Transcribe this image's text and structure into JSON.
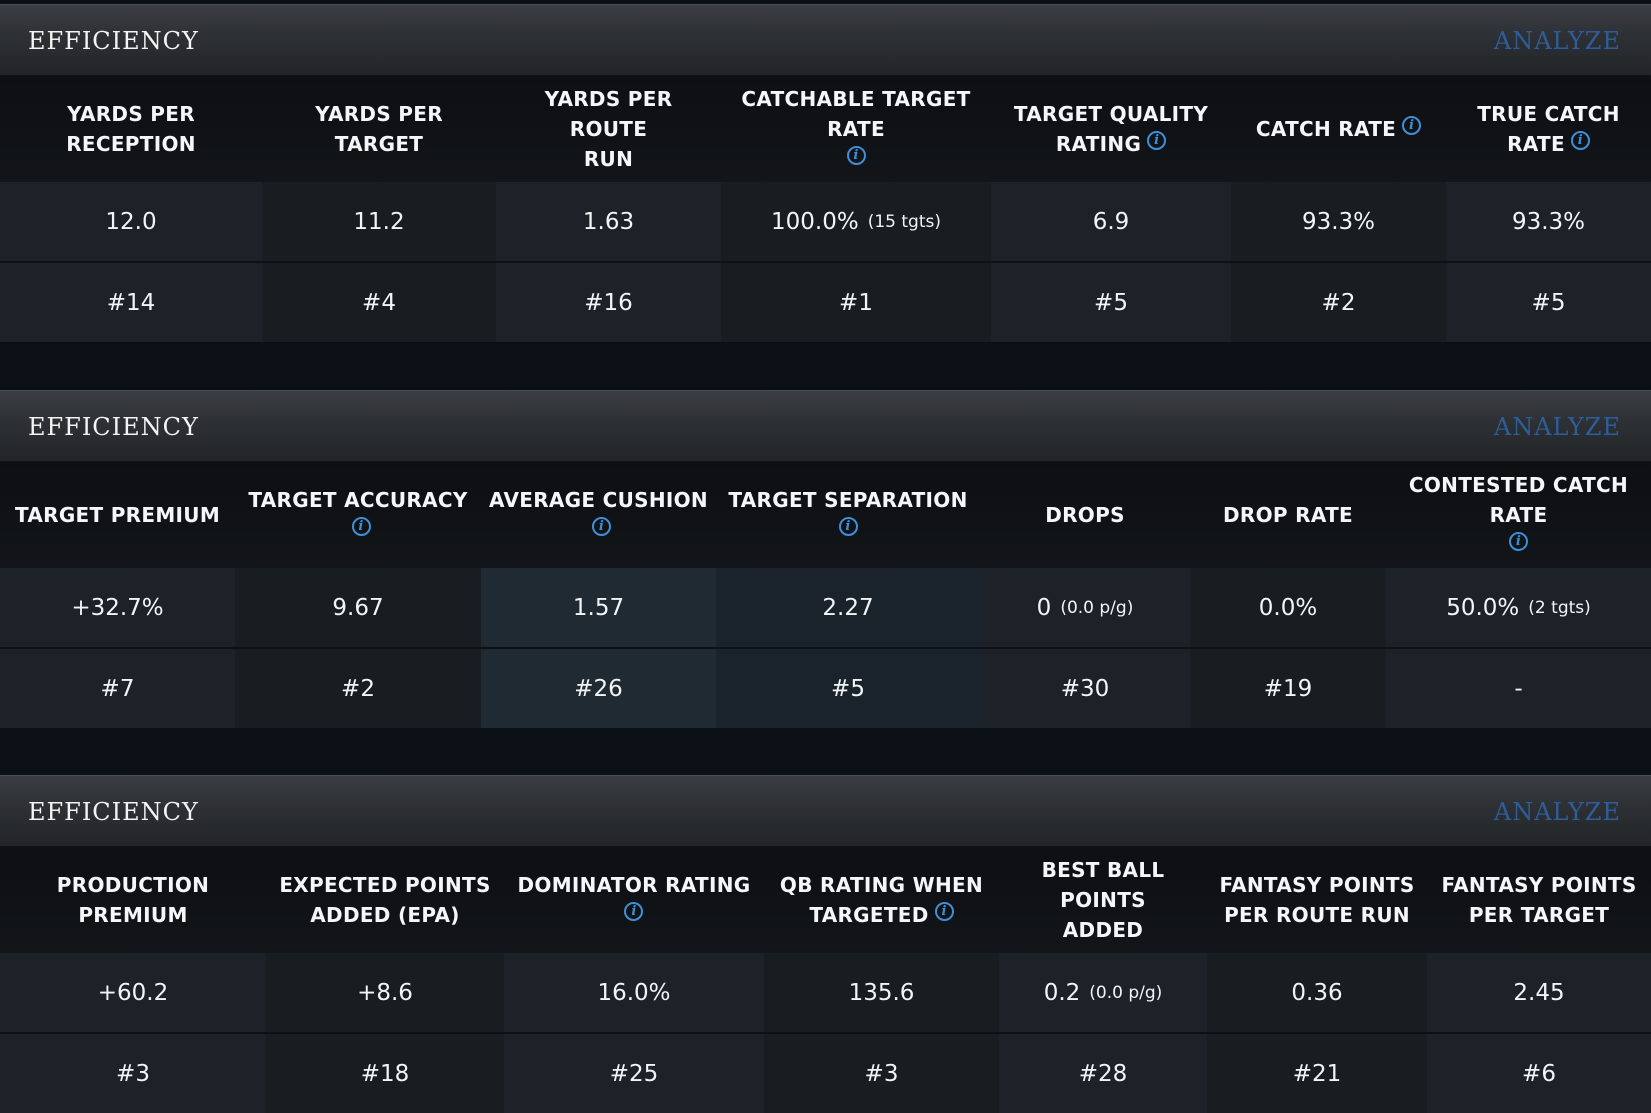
{
  "panels": [
    {
      "title": "EFFICIENCY",
      "analyze": "ANALYZE",
      "columns": [
        {
          "header": [
            "YARDS PER RECEPTION"
          ],
          "info": false,
          "value": "12.0",
          "sub": "",
          "rank": "#14"
        },
        {
          "header": [
            "YARDS PER TARGET"
          ],
          "info": false,
          "value": "11.2",
          "sub": "",
          "rank": "#4"
        },
        {
          "header": [
            "YARDS PER ROUTE",
            "RUN"
          ],
          "info": false,
          "value": "1.63",
          "sub": "",
          "rank": "#16"
        },
        {
          "header": [
            "CATCHABLE TARGET RATE"
          ],
          "info": true,
          "value": "100.0%",
          "sub": "(15 tgts)",
          "rank": "#1"
        },
        {
          "header": [
            "TARGET QUALITY",
            "RATING"
          ],
          "info": true,
          "value": "6.9",
          "sub": "",
          "rank": "#5"
        },
        {
          "header": [
            "CATCH RATE"
          ],
          "info": true,
          "value": "93.3%",
          "sub": "",
          "rank": "#2"
        },
        {
          "header": [
            "TRUE CATCH RATE"
          ],
          "info": true,
          "value": "93.3%",
          "sub": "",
          "rank": "#5"
        }
      ]
    },
    {
      "title": "EFFICIENCY",
      "analyze": "ANALYZE",
      "columns": [
        {
          "header": [
            "TARGET PREMIUM"
          ],
          "info": false,
          "value": "+32.7%",
          "sub": "",
          "rank": "#7"
        },
        {
          "header": [
            "TARGET ACCURACY"
          ],
          "info": true,
          "value": "9.67",
          "sub": "",
          "rank": "#2"
        },
        {
          "header": [
            "AVERAGE CUSHION"
          ],
          "info": true,
          "value": "1.57",
          "sub": "",
          "rank": "#26"
        },
        {
          "header": [
            "TARGET SEPARATION"
          ],
          "info": true,
          "value": "2.27",
          "sub": "",
          "rank": "#5"
        },
        {
          "header": [
            "DROPS"
          ],
          "info": false,
          "value": "0",
          "sub": "(0.0 p/g)",
          "rank": "#30"
        },
        {
          "header": [
            "DROP RATE"
          ],
          "info": false,
          "value": "0.0%",
          "sub": "",
          "rank": "#19"
        },
        {
          "header": [
            "CONTESTED CATCH RATE"
          ],
          "info": true,
          "value": "50.0%",
          "sub": "(2 tgts)",
          "rank": "-"
        }
      ]
    },
    {
      "title": "EFFICIENCY",
      "analyze": "ANALYZE",
      "columns": [
        {
          "header": [
            "PRODUCTION PREMIUM"
          ],
          "info": false,
          "value": "+60.2",
          "sub": "",
          "rank": "#3"
        },
        {
          "header": [
            "EXPECTED POINTS",
            "ADDED (EPA)"
          ],
          "info": false,
          "value": "+8.6",
          "sub": "",
          "rank": "#18"
        },
        {
          "header": [
            "DOMINATOR RATING"
          ],
          "info": true,
          "value": "16.0%",
          "sub": "",
          "rank": "#25"
        },
        {
          "header": [
            "QB RATING WHEN",
            "TARGETED"
          ],
          "info": true,
          "value": "135.6",
          "sub": "",
          "rank": "#3"
        },
        {
          "header": [
            "BEST BALL POINTS",
            "ADDED"
          ],
          "info": false,
          "value": "0.2",
          "sub": "(0.0 p/g)",
          "rank": "#28"
        },
        {
          "header": [
            "FANTASY POINTS",
            "PER ROUTE RUN"
          ],
          "info": false,
          "value": "0.36",
          "sub": "",
          "rank": "#21"
        },
        {
          "header": [
            "FANTASY POINTS",
            "PER TARGET"
          ],
          "info": false,
          "value": "2.45",
          "sub": "",
          "rank": "#6"
        }
      ]
    }
  ],
  "icons": {
    "info": "info-icon"
  },
  "colors": {
    "accent_info": "#3f8fd8",
    "analyze": "#2d5e99",
    "page_bg": "#0b1016"
  }
}
